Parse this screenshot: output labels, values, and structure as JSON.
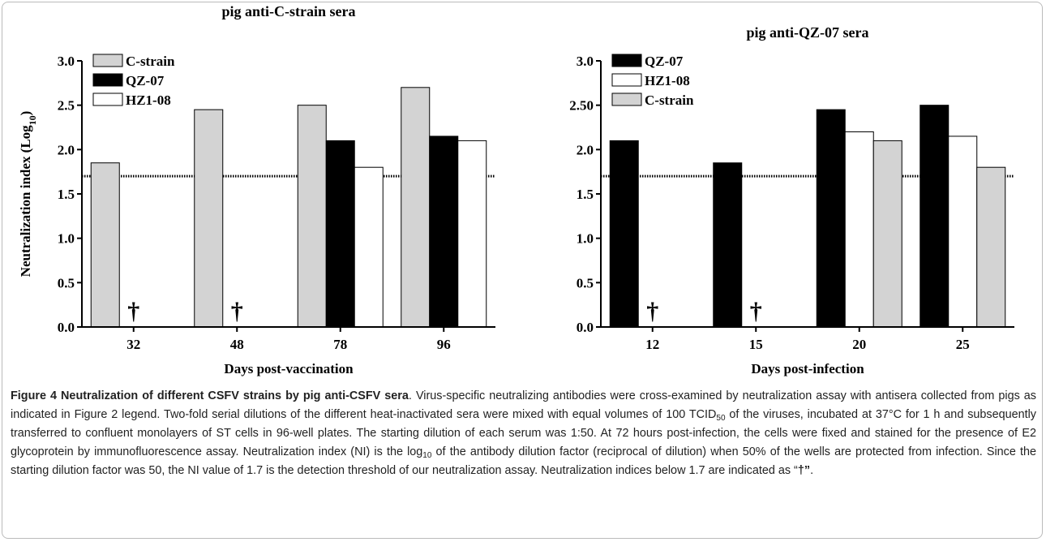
{
  "chart_data": [
    {
      "type": "bar",
      "title": "pig anti-C-strain sera",
      "ylabel": [
        {
          "text": "Neutralization index (Log"
        },
        {
          "text": "10",
          "style": "sub"
        },
        {
          "text": ")"
        }
      ],
      "xlabel": "Days post-vaccination",
      "categories": [
        "32",
        "48",
        "78",
        "96"
      ],
      "series": [
        {
          "name": "C-strain",
          "color": "#d3d3d3",
          "values": [
            1.85,
            2.45,
            2.5,
            2.7
          ]
        },
        {
          "name": "QZ-07",
          "color": "#000000",
          "values": [
            null,
            null,
            2.1,
            2.15
          ]
        },
        {
          "name": "HZ1-08",
          "color": "#ffffff",
          "values": [
            null,
            null,
            1.8,
            2.1
          ]
        }
      ],
      "annotations": [
        {
          "text": "†",
          "x": "32"
        },
        {
          "text": "†",
          "x": "48"
        }
      ],
      "threshold": 1.7,
      "ylim": [
        0,
        3
      ],
      "yticks": [
        {
          "value": 0,
          "label": "0.0"
        },
        0.5,
        {
          "value": 1,
          "label": "1.0"
        },
        1.5,
        {
          "value": 2,
          "label": "2.0"
        },
        2.5,
        {
          "value": 3,
          "label": "3.0"
        }
      ]
    },
    {
      "type": "bar",
      "title": "pig anti-QZ-07 sera",
      "xlabel": "Days post-infection",
      "categories": [
        "12",
        "15",
        "20",
        "25"
      ],
      "series": [
        {
          "name": "QZ-07",
          "color": "#000000",
          "values": [
            2.1,
            1.85,
            2.45,
            2.5
          ]
        },
        {
          "name": "HZ1-08",
          "color": "#ffffff",
          "values": [
            null,
            null,
            2.2,
            2.15
          ]
        },
        {
          "name": "C-strain",
          "color": "#d3d3d3",
          "values": [
            null,
            null,
            2.1,
            1.8
          ]
        }
      ],
      "annotations": [
        {
          "text": "†",
          "x": "12"
        },
        {
          "text": "†",
          "x": "15"
        }
      ],
      "threshold": 1.7,
      "ylim": [
        0,
        3
      ],
      "yticks": [
        {
          "value": 0,
          "label": "0.0"
        },
        0.5,
        {
          "value": 1,
          "label": "1.0"
        },
        1.5,
        {
          "value": 2,
          "label": "2.0"
        },
        {
          "value": 2.5,
          "label": "2.50"
        },
        {
          "value": 3,
          "label": "3.0"
        }
      ]
    }
  ],
  "caption": [
    {
      "text": "Figure 4 Neutralization of different CSFV strains by pig anti-CSFV sera",
      "style": "bold"
    },
    {
      "text": ". Virus-specific neutralizing antibodies were cross-examined by neutralization assay with antisera collected from pigs as indicated in Figure 2 legend. Two-fold serial dilutions of the different heat-inactivated sera were mixed with equal volumes of 100 TCID"
    },
    {
      "text": "50",
      "style": "sub"
    },
    {
      "text": " of the viruses, incubated at 37°C for 1 h and subsequently transferred to confluent monolayers of ST cells in 96-well plates. The starting dilution of each serum was 1:50. At 72 hours post-infection, the cells were fixed and stained for the presence of E2 glycoprotein by immunofluorescence assay. Neutralization index (NI) is the log"
    },
    {
      "text": "10",
      "style": "sub"
    },
    {
      "text": " of the antibody dilution factor (reciprocal of dilution) when 50% of the wells are protected from infection. Since the starting dilution factor was 50, the NI value of 1.7 is the detection threshold of our neutralization assay. Neutralization indices below 1.7 are indicated as “"
    },
    {
      "text": "†”",
      "style": "bold"
    },
    {
      "text": "."
    }
  ]
}
